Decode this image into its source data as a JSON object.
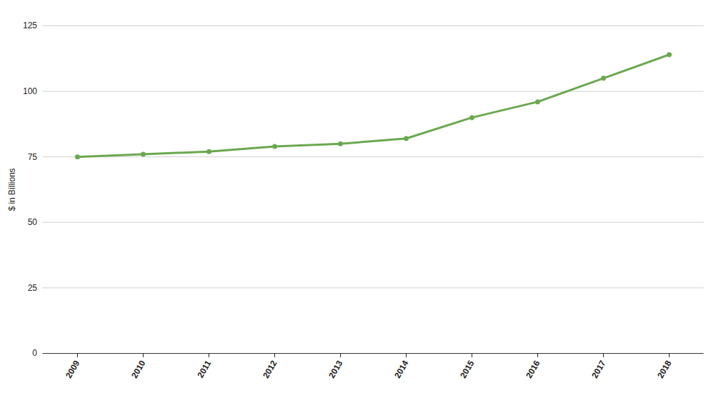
{
  "chart_data": {
    "type": "line",
    "y_label": "$ in Billions",
    "categories": [
      "2009",
      "2010",
      "2011",
      "2012",
      "2013",
      "2014",
      "2015",
      "2016",
      "2017",
      "2018"
    ],
    "values": [
      75,
      76,
      77,
      79,
      80,
      82,
      90,
      96,
      105,
      114
    ],
    "color": "#6aa84f",
    "marker": "circle",
    "line_style": "solid",
    "ylim": [
      0,
      125
    ],
    "yticks": [
      0,
      25,
      50,
      75,
      100,
      125
    ],
    "grid": true
  }
}
